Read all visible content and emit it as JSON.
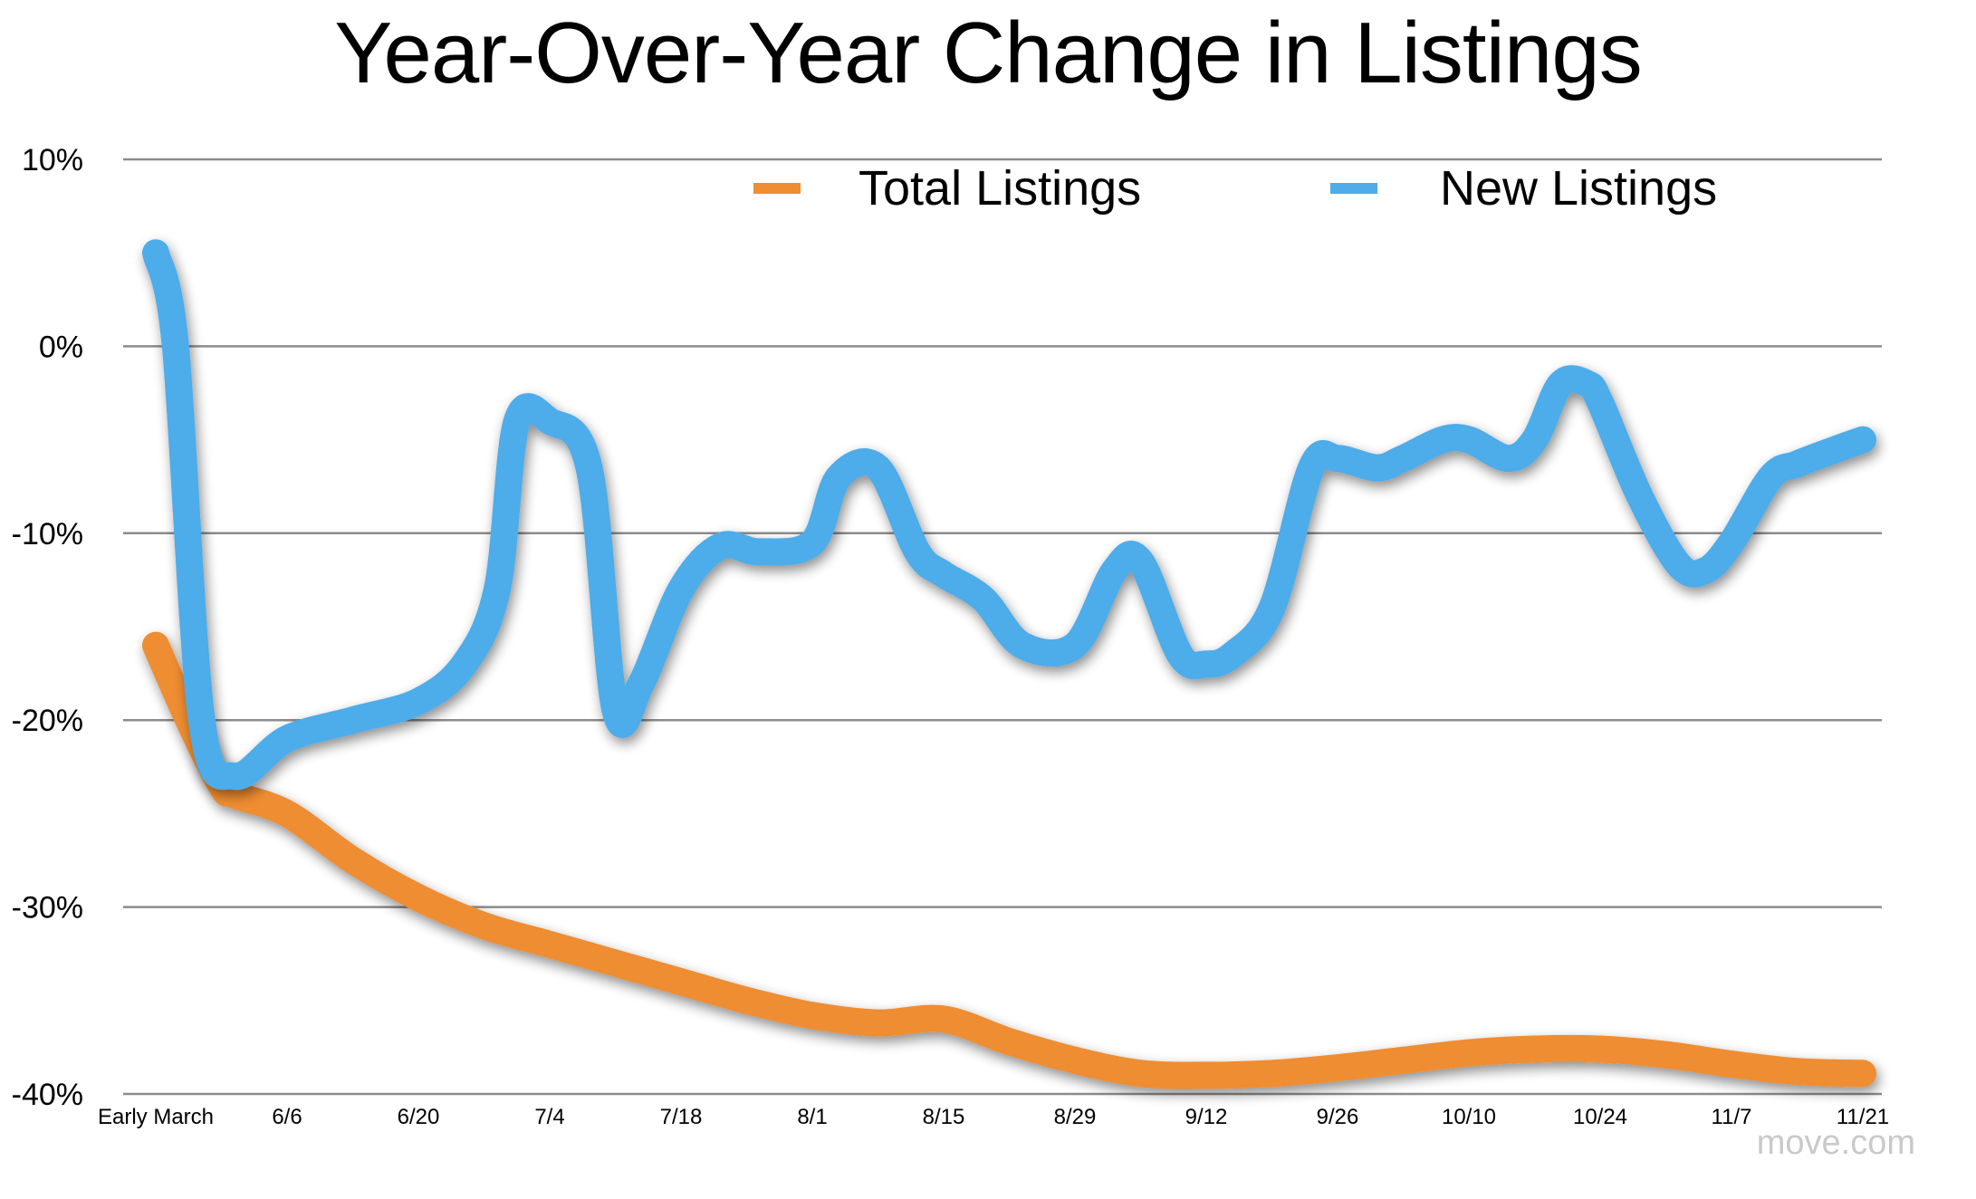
{
  "chart_data": {
    "type": "line",
    "title": "Year-Over-Year Change in Listings",
    "source": "move.com",
    "categories": [
      "Early March",
      "6/6",
      "6/20",
      "7/4",
      "7/18",
      "8/1",
      "8/15",
      "8/29",
      "9/12",
      "9/26",
      "10/10",
      "10/24",
      "11/7",
      "11/21"
    ],
    "yticks": [
      "10%",
      "0%",
      "-10%",
      "-20%",
      "-30%",
      "-40%"
    ],
    "ylim": [
      -40,
      10
    ],
    "grid": true,
    "legend_position": "top-right",
    "series": [
      {
        "name": "Total Listings",
        "color": "#ef8d32",
        "x": [
          0,
          0.25,
          0.5,
          0.6,
          1.0,
          1.5,
          2.0,
          2.5,
          3.0,
          3.5,
          4.0,
          4.5,
          5.0,
          5.5,
          6.0,
          6.5,
          7.0,
          7.5,
          8.0,
          8.5,
          9.0,
          9.5,
          10.0,
          10.5,
          11.0,
          11.5,
          12.0,
          12.5,
          13.0
        ],
        "values": [
          -16,
          -20,
          -23.5,
          -24,
          -25,
          -27.5,
          -29.5,
          -31,
          -32,
          -33,
          -34,
          -35,
          -35.8,
          -36.2,
          -36,
          -37.2,
          -38.2,
          -38.9,
          -39,
          -38.9,
          -38.6,
          -38.2,
          -37.8,
          -37.6,
          -37.6,
          -37.9,
          -38.4,
          -38.8,
          -38.9
        ]
      },
      {
        "name": "New Listings",
        "color": "#4eacea",
        "x": [
          0,
          0.15,
          0.35,
          0.6,
          1.0,
          1.5,
          2.0,
          2.35,
          2.6,
          2.75,
          3.0,
          3.3,
          3.5,
          3.7,
          4.0,
          4.3,
          4.6,
          5.0,
          5.2,
          5.5,
          5.8,
          6.0,
          6.3,
          6.6,
          7.0,
          7.3,
          7.5,
          7.8,
          8.0,
          8.2,
          8.5,
          8.8,
          9.0,
          9.3,
          9.5,
          9.8,
          10.0,
          10.3,
          10.5,
          10.7,
          10.9,
          11.0,
          11.3,
          11.6,
          11.8,
          12.0,
          12.3,
          12.5,
          12.8,
          13.0
        ],
        "values": [
          5,
          0,
          -20,
          -23,
          -21,
          -20,
          -19,
          -17,
          -13,
          -4,
          -4,
          -6.5,
          -19.5,
          -18,
          -13,
          -10.7,
          -11,
          -10.5,
          -7,
          -6.5,
          -11,
          -12.2,
          -13.5,
          -16,
          -16,
          -12,
          -11.5,
          -16.5,
          -17,
          -16.5,
          -14,
          -6.5,
          -6,
          -6.5,
          -6,
          -5,
          -5,
          -6,
          -5,
          -2,
          -2,
          -3,
          -8,
          -11.7,
          -12,
          -10.5,
          -7,
          -6.3,
          -5.5,
          -5
        ]
      }
    ]
  }
}
